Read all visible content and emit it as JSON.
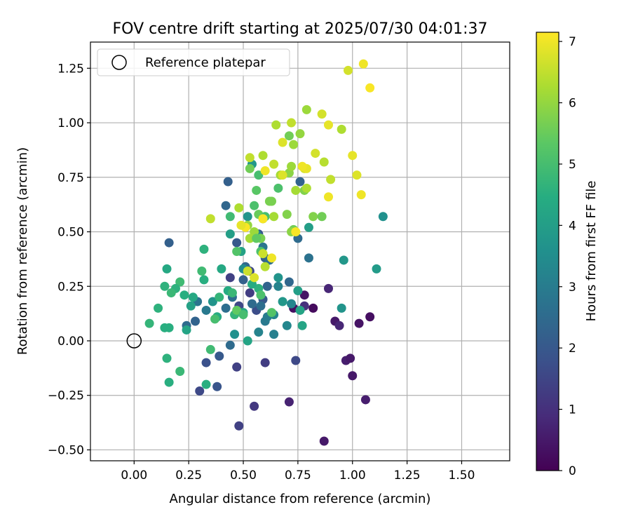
{
  "chart_data": {
    "type": "scatter",
    "title": "FOV centre drift starting at 2025/07/30 04:01:37",
    "xlabel": "Angular distance from reference (arcmin)",
    "ylabel": "Rotation from reference (arcmin)",
    "xlim": [
      -0.2,
      1.72
    ],
    "ylim": [
      -0.55,
      1.37
    ],
    "x_ticks": [
      0.0,
      0.25,
      0.5,
      0.75,
      1.0,
      1.25,
      1.5
    ],
    "x_tick_labels": [
      "0.00",
      "0.25",
      "0.50",
      "0.75",
      "1.00",
      "1.25",
      "1.50"
    ],
    "y_ticks": [
      -0.5,
      -0.25,
      0.0,
      0.25,
      0.5,
      0.75,
      1.0,
      1.25
    ],
    "y_tick_labels": [
      "−0.50",
      "−0.25",
      "0.00",
      "0.25",
      "0.50",
      "0.75",
      "1.00",
      "1.25"
    ],
    "grid": true,
    "legend": {
      "placement": "top-left",
      "entries": [
        "Reference platepar"
      ]
    },
    "reference_point": {
      "x": 0.0,
      "y": 0.0,
      "label": "Reference platepar"
    },
    "colormap": "viridis",
    "colorbar": {
      "label": "Hours from first FF file",
      "range": [
        0,
        7.15
      ],
      "ticks": [
        0,
        1,
        2,
        3,
        4,
        5,
        6,
        7
      ],
      "tick_labels": [
        "0",
        "1",
        "2",
        "3",
        "4",
        "5",
        "6",
        "7"
      ]
    },
    "points_format": [
      "x_arcmin",
      "y_arcmin",
      "hours"
    ],
    "points": [
      [
        0.87,
        -0.46,
        0.5
      ],
      [
        0.71,
        -0.28,
        0.7
      ],
      [
        1.06,
        -0.27,
        0.6
      ],
      [
        0.97,
        -0.09,
        0.6
      ],
      [
        0.99,
        -0.08,
        0.5
      ],
      [
        1.0,
        -0.16,
        0.5
      ],
      [
        0.73,
        0.15,
        0.3
      ],
      [
        0.78,
        0.21,
        0.4
      ],
      [
        0.82,
        0.15,
        0.2
      ],
      [
        0.92,
        0.09,
        0.5
      ],
      [
        0.94,
        0.07,
        0.8
      ],
      [
        1.03,
        0.08,
        0.4
      ],
      [
        1.08,
        0.11,
        0.3
      ],
      [
        0.89,
        0.24,
        0.8
      ],
      [
        0.78,
        0.16,
        1.0
      ],
      [
        0.55,
        -0.3,
        1.2
      ],
      [
        0.48,
        -0.39,
        1.4
      ],
      [
        0.6,
        -0.1,
        1.3
      ],
      [
        0.74,
        -0.09,
        1.6
      ],
      [
        0.47,
        -0.12,
        1.4
      ],
      [
        0.3,
        -0.23,
        1.6
      ],
      [
        0.33,
        -0.1,
        1.8
      ],
      [
        0.38,
        -0.21,
        1.9
      ],
      [
        0.39,
        -0.07,
        2.0
      ],
      [
        0.44,
        -0.02,
        2.5
      ],
      [
        0.48,
        0.16,
        1.6
      ],
      [
        0.53,
        0.22,
        1.3
      ],
      [
        0.56,
        0.14,
        1.7
      ],
      [
        0.59,
        0.19,
        2.0
      ],
      [
        0.61,
        0.25,
        2.3
      ],
      [
        0.54,
        0.17,
        2.5
      ],
      [
        0.44,
        0.29,
        1.4
      ],
      [
        0.53,
        0.32,
        1.6
      ],
      [
        0.43,
        0.73,
        2.2
      ],
      [
        0.42,
        0.62,
        2.4
      ],
      [
        0.47,
        0.45,
        2.0
      ],
      [
        0.51,
        0.34,
        2.4
      ],
      [
        0.5,
        0.28,
        2.2
      ],
      [
        0.45,
        0.2,
        2.6
      ],
      [
        0.42,
        0.15,
        2.6
      ],
      [
        0.16,
        0.45,
        2.2
      ],
      [
        0.24,
        0.07,
        2.5
      ],
      [
        0.28,
        0.09,
        2.3
      ],
      [
        0.29,
        0.18,
        2.8
      ],
      [
        0.33,
        0.14,
        2.9
      ],
      [
        0.57,
        0.49,
        2.0
      ],
      [
        0.59,
        0.43,
        2.8
      ],
      [
        0.6,
        0.38,
        2.2
      ],
      [
        0.62,
        0.37,
        2.6
      ],
      [
        0.58,
        0.16,
        2.6
      ],
      [
        0.6,
        0.09,
        2.9
      ],
      [
        0.61,
        0.11,
        3.0
      ],
      [
        0.57,
        0.04,
        3.2
      ],
      [
        0.64,
        0.03,
        3.1
      ],
      [
        0.7,
        0.07,
        3.3
      ],
      [
        0.66,
        0.25,
        3.2
      ],
      [
        0.71,
        0.27,
        2.4
      ],
      [
        0.72,
        0.17,
        3.3
      ],
      [
        0.75,
        0.47,
        2.5
      ],
      [
        0.76,
        0.73,
        2.3
      ],
      [
        0.8,
        0.38,
        2.7
      ],
      [
        0.64,
        0.12,
        3.3
      ],
      [
        0.66,
        0.29,
        3.7
      ],
      [
        0.68,
        0.18,
        3.8
      ],
      [
        0.75,
        0.23,
        4.0
      ],
      [
        0.76,
        0.14,
        4.2
      ],
      [
        0.77,
        0.07,
        4.2
      ],
      [
        0.95,
        0.15,
        3.7
      ],
      [
        0.96,
        0.37,
        3.8
      ],
      [
        1.11,
        0.33,
        3.9
      ],
      [
        1.14,
        0.57,
        3.6
      ],
      [
        0.8,
        0.52,
        4.0
      ],
      [
        0.46,
        0.03,
        3.6
      ],
      [
        0.52,
        0.0,
        4.2
      ],
      [
        0.5,
        0.33,
        3.5
      ],
      [
        0.49,
        0.41,
        4.1
      ],
      [
        0.44,
        0.49,
        4.0
      ],
      [
        0.52,
        0.57,
        3.7
      ],
      [
        0.54,
        0.81,
        3.8
      ],
      [
        0.56,
        0.49,
        3.3
      ],
      [
        0.57,
        0.24,
        4.6
      ],
      [
        0.54,
        0.26,
        4.4
      ],
      [
        0.46,
        0.12,
        4.7
      ],
      [
        0.5,
        0.13,
        4.3
      ],
      [
        0.43,
        0.23,
        4.4
      ],
      [
        0.45,
        0.22,
        4.8
      ],
      [
        0.4,
        0.33,
        4.3
      ],
      [
        0.38,
        0.11,
        4.4
      ],
      [
        0.36,
        0.18,
        3.7
      ],
      [
        0.32,
        0.28,
        4.5
      ],
      [
        0.27,
        0.2,
        4.3
      ],
      [
        0.26,
        0.16,
        4.1
      ],
      [
        0.23,
        0.21,
        4.5
      ],
      [
        0.21,
        0.27,
        4.9
      ],
      [
        0.19,
        0.24,
        4.6
      ],
      [
        0.17,
        0.22,
        4.8
      ],
      [
        0.14,
        0.25,
        4.6
      ],
      [
        0.15,
        0.33,
        4.3
      ],
      [
        0.11,
        0.15,
        4.6
      ],
      [
        0.07,
        0.08,
        4.7
      ],
      [
        0.14,
        0.06,
        4.5
      ],
      [
        0.16,
        0.06,
        4.5
      ],
      [
        0.24,
        0.05,
        4.2
      ],
      [
        0.15,
        -0.08,
        4.6
      ],
      [
        0.16,
        -0.19,
        4.5
      ],
      [
        0.21,
        -0.14,
        4.8
      ],
      [
        0.33,
        -0.2,
        4.5
      ],
      [
        0.35,
        -0.04,
        4.9
      ],
      [
        0.37,
        0.1,
        5.0
      ],
      [
        0.31,
        0.32,
        4.9
      ],
      [
        0.32,
        0.42,
        4.6
      ],
      [
        0.39,
        0.2,
        4.7
      ],
      [
        0.44,
        0.57,
        4.9
      ],
      [
        0.47,
        0.41,
        5.2
      ],
      [
        0.55,
        0.62,
        5.1
      ],
      [
        0.56,
        0.69,
        5.3
      ],
      [
        0.57,
        0.76,
        5.0
      ],
      [
        0.53,
        0.79,
        5.6
      ],
      [
        0.57,
        0.58,
        5.5
      ],
      [
        0.59,
        0.56,
        5.4
      ],
      [
        0.6,
        0.57,
        5.0
      ],
      [
        0.58,
        0.47,
        5.7
      ],
      [
        0.58,
        0.41,
        5.1
      ],
      [
        0.66,
        0.7,
        5.1
      ],
      [
        0.7,
        0.58,
        5.8
      ],
      [
        0.73,
        0.51,
        5.6
      ],
      [
        0.78,
        0.69,
        5.8
      ],
      [
        0.82,
        0.57,
        5.8
      ],
      [
        0.86,
        0.57,
        5.6
      ],
      [
        0.72,
        0.5,
        5.9
      ],
      [
        0.62,
        0.64,
        5.7
      ],
      [
        0.63,
        0.64,
        5.7
      ],
      [
        0.64,
        0.57,
        6.2
      ],
      [
        0.67,
        0.76,
        6.2
      ],
      [
        0.71,
        0.77,
        5.9
      ],
      [
        0.74,
        0.69,
        6.2
      ],
      [
        0.72,
        0.8,
        6.1
      ],
      [
        0.73,
        0.9,
        6.1
      ],
      [
        0.71,
        0.94,
        5.6
      ],
      [
        0.65,
        0.99,
        6.3
      ],
      [
        0.72,
        1.0,
        6.5
      ],
      [
        0.76,
        0.95,
        6.0
      ],
      [
        0.79,
        1.06,
        6.1
      ],
      [
        0.79,
        0.7,
        6.3
      ],
      [
        0.78,
        0.79,
        6.7
      ],
      [
        0.83,
        0.86,
        6.7
      ],
      [
        0.86,
        1.04,
        6.7
      ],
      [
        0.89,
        0.99,
        6.9
      ],
      [
        0.87,
        0.82,
        6.4
      ],
      [
        0.9,
        0.74,
        6.5
      ],
      [
        0.95,
        0.97,
        6.3
      ],
      [
        0.98,
        1.24,
        6.7
      ],
      [
        1.0,
        0.85,
        6.9
      ],
      [
        1.02,
        0.76,
        6.8
      ],
      [
        1.04,
        0.67,
        7.0
      ],
      [
        1.05,
        1.27,
        7.0
      ],
      [
        1.08,
        1.16,
        7.1
      ],
      [
        0.89,
        0.66,
        7.0
      ],
      [
        0.79,
        0.79,
        6.9
      ],
      [
        0.77,
        0.8,
        7.0
      ],
      [
        0.68,
        0.76,
        6.8
      ],
      [
        0.68,
        0.91,
        6.8
      ],
      [
        0.74,
        0.5,
        7.1
      ],
      [
        0.64,
        0.81,
        6.5
      ],
      [
        0.6,
        0.78,
        7.0
      ],
      [
        0.59,
        0.85,
        6.3
      ],
      [
        0.53,
        0.84,
        6.5
      ],
      [
        0.55,
        0.5,
        6.1
      ],
      [
        0.52,
        0.53,
        6.0
      ],
      [
        0.51,
        0.52,
        7.1
      ],
      [
        0.48,
        0.61,
        6.3
      ],
      [
        0.49,
        0.53,
        6.9
      ],
      [
        0.53,
        0.47,
        6.2
      ],
      [
        0.56,
        0.47,
        5.4
      ],
      [
        0.59,
        0.56,
        7.1
      ],
      [
        0.59,
        0.4,
        6.6
      ],
      [
        0.6,
        0.34,
        6.4
      ],
      [
        0.63,
        0.38,
        7.0
      ],
      [
        0.55,
        0.29,
        6.8
      ],
      [
        0.52,
        0.32,
        6.6
      ],
      [
        0.35,
        0.56,
        6.5
      ],
      [
        0.47,
        0.14,
        5.4
      ],
      [
        0.5,
        0.12,
        5.0
      ],
      [
        0.58,
        0.21,
        5.1
      ],
      [
        0.63,
        0.13,
        5.2
      ]
    ]
  }
}
